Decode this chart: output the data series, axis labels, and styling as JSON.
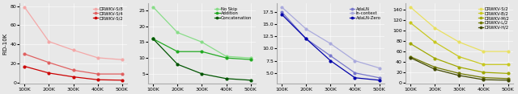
{
  "x": [
    100000,
    200000,
    300000,
    400000,
    500000
  ],
  "x_labels": [
    "100K",
    "200K",
    "300K",
    "400K",
    "500K"
  ],
  "panel1": {
    "ylabel": "FID-10K",
    "series": [
      {
        "label": "DRWKV-S/8",
        "color": "#f4a8a8",
        "values": [
          79,
          43,
          34,
          26,
          24
        ]
      },
      {
        "label": "DRWKV-S/4",
        "color": "#e06060",
        "values": [
          30,
          21,
          13,
          9,
          9
        ]
      },
      {
        "label": "DRWKV-S/2",
        "color": "#cc0000",
        "values": [
          17,
          10,
          6,
          3,
          2.5
        ]
      }
    ]
  },
  "panel2": {
    "ylabel": "",
    "series": [
      {
        "label": "No Skip",
        "color": "#88dd88",
        "values": [
          26,
          18,
          15,
          10.5,
          10
        ]
      },
      {
        "label": "Addition",
        "color": "#22aa22",
        "values": [
          16,
          12,
          12,
          10,
          9.5
        ]
      },
      {
        "label": "Concatenation",
        "color": "#005500",
        "values": [
          16,
          8,
          5,
          3.5,
          3
        ]
      }
    ]
  },
  "panel3": {
    "ylabel": "",
    "series": [
      {
        "label": "AdaLN",
        "color": "#7777cc",
        "values": [
          17.5,
          12,
          8.5,
          5.0,
          4.0
        ]
      },
      {
        "label": "In-context",
        "color": "#aaaadd",
        "values": [
          18.5,
          14,
          11,
          7.5,
          6.0
        ]
      },
      {
        "label": "AdaLN-Zero",
        "color": "#0000aa",
        "values": [
          17,
          12,
          7.5,
          4.0,
          3.5
        ]
      }
    ]
  },
  "panel4": {
    "ylabel": "",
    "series": [
      {
        "label": "DRWKV-S/2",
        "color": "#e8e060",
        "values": [
          145,
          105,
          78,
          60,
          60
        ]
      },
      {
        "label": "DRWKV-B/2",
        "color": "#c8c820",
        "values": [
          115,
          78,
          50,
          35,
          35
        ]
      },
      {
        "label": "DRWKV-M/2",
        "color": "#a0a800",
        "values": [
          75,
          47,
          30,
          20,
          18
        ]
      },
      {
        "label": "DRWKV-L/2",
        "color": "#707800",
        "values": [
          50,
          30,
          18,
          10,
          8
        ]
      },
      {
        "label": "DRWKV-H/2",
        "color": "#404800",
        "values": [
          48,
          26,
          14,
          6,
          5
        ]
      }
    ]
  }
}
